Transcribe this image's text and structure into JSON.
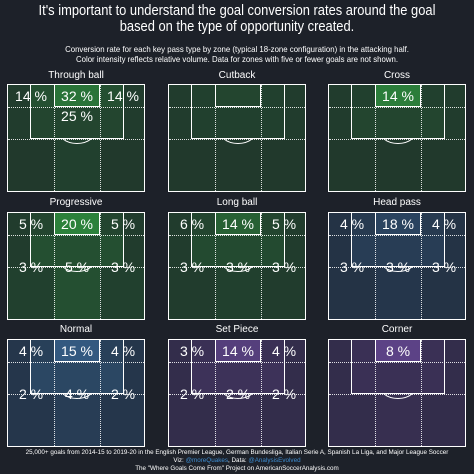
{
  "title": {
    "line1": "It's important to understand the goal conversion rates around the goal",
    "line2": "based on the type of opportunity created."
  },
  "subtitle": {
    "line1": "Conversion rate for each key pass type by zone (typical 18-zone configuration) in the attacking half.",
    "line2": "Color intensity reflects relative volume. Data for zones with five or fewer goals are not shown."
  },
  "footer": {
    "line1": "25,000+ goals from 2014-15 to 2019-20 in the English Premier League, German Bundesliga, Italian Serie A, Spanish La Liga, and Major League Soccer",
    "line2a": "Viz: ",
    "handle1": "@moreQuakes",
    "line2b": ", Data: ",
    "handle2": "@AnalysisEvolved",
    "line3": "The \"Where Goals Come From\" Project on AmericanSoccerAnalysis.com"
  },
  "chart_data": [
    {
      "type": "heatmap",
      "title": "Through ball",
      "color": "#2e8b3d",
      "cells": {
        "left_box": "14 %",
        "goal_mouth": "32 %",
        "right_box": "14 %",
        "center_top_box": "25 %"
      },
      "intensity": {
        "left_box": 0.35,
        "goal_mouth": 0.75,
        "right_box": 0.35,
        "center_top_box": 0.25,
        "left_wide": 0.15,
        "right_wide": 0.15,
        "left_mid": 0.12,
        "center_mid": 0.2,
        "right_mid": 0.12
      }
    },
    {
      "type": "heatmap",
      "title": "Cutback",
      "color": "#2e8b3d",
      "cells": {},
      "intensity": {
        "left_box": 0.2,
        "goal_mouth": 0.25,
        "right_box": 0.2,
        "center_top_box": 0.2,
        "left_wide": 0.15,
        "right_wide": 0.15,
        "left_mid": 0.12,
        "center_mid": 0.12,
        "right_mid": 0.12
      }
    },
    {
      "type": "heatmap",
      "title": "Cross",
      "color": "#2e8b3d",
      "cells": {
        "goal_mouth": "14 %"
      },
      "intensity": {
        "left_box": 0.2,
        "goal_mouth": 0.85,
        "right_box": 0.2,
        "center_top_box": 0.25,
        "left_wide": 0.15,
        "right_wide": 0.15,
        "left_mid": 0.12,
        "center_mid": 0.12,
        "right_mid": 0.12
      }
    },
    {
      "type": "heatmap",
      "title": "Progressive",
      "color": "#2e8b3d",
      "cells": {
        "left_box": "5 %",
        "goal_mouth": "20 %",
        "right_box": "5 %",
        "left_mid": "3 %",
        "center_mid": "5 %",
        "right_mid": "3 %"
      },
      "intensity": {
        "left_box": 0.25,
        "goal_mouth": 0.9,
        "right_box": 0.25,
        "center_top_box": 0.35,
        "left_wide": 0.15,
        "right_wide": 0.15,
        "left_mid": 0.2,
        "center_mid": 0.35,
        "right_mid": 0.2
      }
    },
    {
      "type": "heatmap",
      "title": "Long ball",
      "color": "#2e8b3d",
      "cells": {
        "left_box": "6 %",
        "goal_mouth": "14 %",
        "right_box": "5 %",
        "left_mid": "3 %",
        "center_mid": "3 %",
        "right_mid": "3 %"
      },
      "intensity": {
        "left_box": 0.25,
        "goal_mouth": 0.55,
        "right_box": 0.25,
        "center_top_box": 0.3,
        "left_wide": 0.15,
        "right_wide": 0.15,
        "left_mid": 0.15,
        "center_mid": 0.2,
        "right_mid": 0.15
      }
    },
    {
      "type": "heatmap",
      "title": "Head pass",
      "color": "#3a6a9a",
      "cells": {
        "left_box": "4 %",
        "goal_mouth": "18 %",
        "right_box": "4 %",
        "left_mid": "3 %",
        "center_mid": "3 %",
        "right_mid": "3 %"
      },
      "intensity": {
        "left_box": 0.25,
        "goal_mouth": 0.4,
        "right_box": 0.25,
        "center_top_box": 0.3,
        "left_wide": 0.15,
        "right_wide": 0.15,
        "left_mid": 0.15,
        "center_mid": 0.2,
        "right_mid": 0.15
      }
    },
    {
      "type": "heatmap",
      "title": "Normal",
      "color": "#3a6a9a",
      "cells": {
        "left_box": "4 %",
        "goal_mouth": "15 %",
        "right_box": "4 %",
        "left_mid": "2 %",
        "center_mid": "4 %",
        "right_mid": "2 %"
      },
      "intensity": {
        "left_box": 0.35,
        "goal_mouth": 0.75,
        "right_box": 0.35,
        "center_top_box": 0.45,
        "left_wide": 0.2,
        "right_wide": 0.2,
        "left_mid": 0.2,
        "center_mid": 0.3,
        "right_mid": 0.2
      }
    },
    {
      "type": "heatmap",
      "title": "Set Piece",
      "color": "#6a4a9a",
      "cells": {
        "left_box": "3 %",
        "goal_mouth": "14 %",
        "right_box": "4 %",
        "left_mid": "2 %",
        "center_mid": "2 %",
        "right_mid": "2 %"
      },
      "intensity": {
        "left_box": 0.3,
        "goal_mouth": 0.7,
        "right_box": 0.3,
        "center_top_box": 0.35,
        "left_wide": 0.2,
        "right_wide": 0.2,
        "left_mid": 0.2,
        "center_mid": 0.25,
        "right_mid": 0.2
      }
    },
    {
      "type": "heatmap",
      "title": "Corner",
      "color": "#6a4a9a",
      "cells": {
        "goal_mouth": "8 %"
      },
      "intensity": {
        "left_box": 0.3,
        "goal_mouth": 0.8,
        "right_box": 0.3,
        "center_top_box": 0.3,
        "left_wide": 0.2,
        "right_wide": 0.2,
        "left_mid": 0.2,
        "center_mid": 0.25,
        "right_mid": 0.2
      }
    }
  ]
}
